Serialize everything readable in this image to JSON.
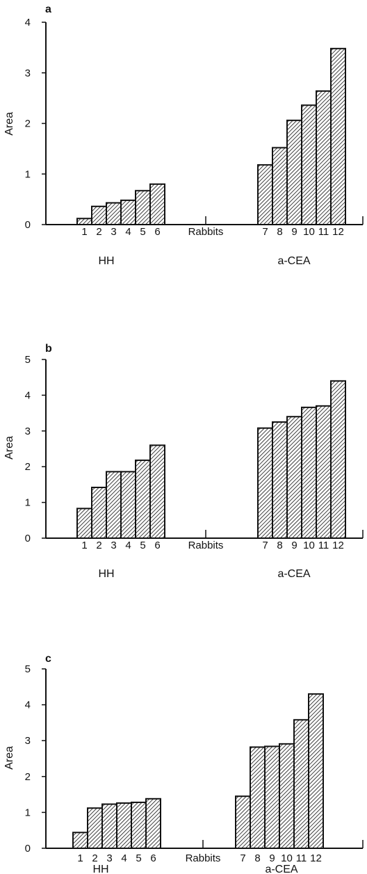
{
  "chart_data": [
    {
      "type": "bar",
      "panel_label": "a",
      "ylabel": "Area",
      "ylim": [
        0,
        4
      ],
      "yticks": [
        "0",
        "1",
        "2",
        "3",
        "4"
      ],
      "x_tick_labels": [
        "1",
        "2",
        "3",
        "4",
        "5",
        "6",
        "Rabbits",
        "7",
        "8",
        "9",
        "10",
        "11",
        "12"
      ],
      "groups": [
        {
          "label": "HH",
          "categories": [
            "1",
            "2",
            "3",
            "4",
            "5",
            "6"
          ],
          "values": [
            0.12,
            0.36,
            0.43,
            0.48,
            0.67,
            0.8
          ]
        },
        {
          "label": "a-CEA",
          "categories": [
            "7",
            "8",
            "9",
            "10",
            "11",
            "12"
          ],
          "values": [
            1.18,
            1.52,
            2.06,
            2.36,
            2.64,
            3.48
          ]
        }
      ]
    },
    {
      "type": "bar",
      "panel_label": "b",
      "ylabel": "Area",
      "ylim": [
        0,
        5
      ],
      "yticks": [
        "0",
        "1",
        "2",
        "3",
        "4",
        "5"
      ],
      "x_tick_labels": [
        "1",
        "2",
        "3",
        "4",
        "5",
        "6",
        "Rabbits",
        "7",
        "8",
        "9",
        "10",
        "11",
        "12"
      ],
      "groups": [
        {
          "label": "HH",
          "categories": [
            "1",
            "2",
            "3",
            "4",
            "5",
            "6"
          ],
          "values": [
            0.83,
            1.42,
            1.86,
            1.86,
            2.18,
            2.6
          ]
        },
        {
          "label": "a-CEA",
          "categories": [
            "7",
            "8",
            "9",
            "10",
            "11",
            "12"
          ],
          "values": [
            3.08,
            3.25,
            3.4,
            3.66,
            3.7,
            4.4
          ]
        }
      ]
    },
    {
      "type": "bar",
      "panel_label": "c",
      "ylabel": "Area",
      "ylim": [
        0,
        5
      ],
      "yticks": [
        "0",
        "1",
        "2",
        "3",
        "4",
        "5"
      ],
      "x_tick_labels": [
        "1",
        "2",
        "3",
        "4",
        "5",
        "6",
        "Rabbits",
        "7",
        "8",
        "9",
        "10",
        "11",
        "12"
      ],
      "groups": [
        {
          "label": "HH",
          "categories": [
            "1",
            "2",
            "3",
            "4",
            "5",
            "6"
          ],
          "values": [
            0.44,
            1.12,
            1.23,
            1.26,
            1.28,
            1.38
          ]
        },
        {
          "label": "a-CEA",
          "categories": [
            "7",
            "8",
            "9",
            "10",
            "11",
            "12"
          ],
          "values": [
            1.45,
            2.82,
            2.84,
            2.91,
            3.58,
            4.3
          ]
        }
      ]
    }
  ],
  "colors": {
    "ink": "#111111",
    "bar_fill": "#ffffff"
  }
}
